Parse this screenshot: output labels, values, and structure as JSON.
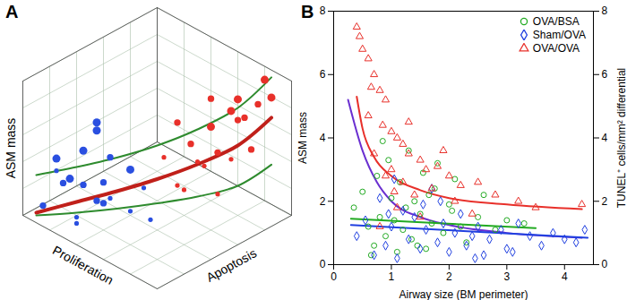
{
  "chart_data": [
    {
      "type": "scatter3d",
      "title": "A",
      "x_label": "Proliferation",
      "y_label": "Apoptosis",
      "z_label": "ASM mass",
      "xlim": [
        0,
        1
      ],
      "ylim": [
        0,
        1
      ],
      "zlim": [
        0,
        1
      ],
      "tick_labels": false,
      "grid": true,
      "series": [
        {
          "type": "scatter",
          "color": "#e8302a",
          "marker": "circle",
          "x": [
            0.1,
            0.2,
            0.3,
            0.15,
            0.4,
            0.25,
            0.05,
            0.35,
            0.5,
            0.2,
            0.3,
            0.45,
            0.1,
            0.6,
            0.25,
            0.4,
            0.15,
            0.55,
            0.35,
            0.2
          ],
          "y": [
            0.95,
            0.85,
            0.9,
            0.7,
            0.8,
            0.6,
            0.75,
            0.65,
            0.9,
            1.0,
            0.5,
            0.7,
            0.55,
            0.75,
            0.8,
            0.55,
            0.9,
            0.6,
            0.95,
            0.65
          ],
          "z": [
            0.85,
            0.7,
            0.6,
            0.5,
            0.55,
            0.45,
            0.6,
            0.4,
            0.65,
            0.9,
            0.3,
            0.45,
            0.35,
            0.5,
            0.75,
            0.25,
            0.8,
            0.35,
            0.7,
            0.55
          ],
          "sizes": [
            3,
            2,
            2,
            1,
            3,
            1,
            2,
            1,
            2,
            3,
            1,
            2,
            1,
            2,
            3,
            1,
            2,
            1,
            3,
            2
          ]
        },
        {
          "type": "scatter",
          "color": "#2a4fe0",
          "marker": "circle",
          "x": [
            0.9,
            0.8,
            0.7,
            0.85,
            0.6,
            0.75,
            0.95,
            0.65,
            0.5,
            0.8,
            0.7,
            0.55,
            0.9,
            0.4,
            0.75,
            0.6,
            0.85,
            0.45,
            0.65,
            0.8
          ],
          "y": [
            0.05,
            0.15,
            0.1,
            0.3,
            0.2,
            0.4,
            0.2,
            0.05,
            0.3,
            0.25,
            0.35,
            0.1,
            0.45,
            0.2,
            0.05,
            0.5,
            0.1,
            0.4,
            0.25,
            0.35
          ],
          "z": [
            0.1,
            0.3,
            0.05,
            0.4,
            0.2,
            0.35,
            0.25,
            0.15,
            0.45,
            0.2,
            0.1,
            0.3,
            0.5,
            0.25,
            0.35,
            0.15,
            0.45,
            0.05,
            0.3,
            0.55
          ],
          "sizes": [
            2,
            3,
            1,
            3,
            2,
            2,
            1,
            1,
            3,
            2,
            1,
            2,
            3,
            1,
            2,
            1,
            3,
            1,
            2,
            3
          ]
        },
        {
          "type": "line",
          "color": "#2e8b2e",
          "x": [
            0.95,
            0.8,
            0.65,
            0.5,
            0.35,
            0.2,
            0.1
          ],
          "y": [
            0.05,
            0.2,
            0.35,
            0.5,
            0.65,
            0.8,
            0.95
          ],
          "z": [
            0.3,
            0.36,
            0.43,
            0.52,
            0.64,
            0.8,
            1.0
          ]
        },
        {
          "type": "line",
          "color": "#2e8b2e",
          "x": [
            0.95,
            0.8,
            0.65,
            0.5,
            0.35,
            0.2,
            0.1
          ],
          "y": [
            0.05,
            0.2,
            0.35,
            0.5,
            0.65,
            0.8,
            0.95
          ],
          "z": [
            0.0,
            0.02,
            0.05,
            0.09,
            0.14,
            0.22,
            0.35
          ]
        },
        {
          "type": "line",
          "color": "#c0201a",
          "x": [
            0.95,
            0.8,
            0.65,
            0.5,
            0.35,
            0.2,
            0.1
          ],
          "y": [
            0.05,
            0.2,
            0.35,
            0.5,
            0.65,
            0.8,
            0.95
          ],
          "z": [
            0.02,
            0.1,
            0.18,
            0.27,
            0.38,
            0.52,
            0.7
          ]
        }
      ]
    },
    {
      "type": "scatter",
      "title": "B",
      "x_label": "Airway size (BM perimeter)",
      "y_label": "ASM mass",
      "y2_label": "TUNEL⁺ cells/mm² differential",
      "xlim": [
        0,
        4.5
      ],
      "xticks": [
        0,
        1,
        2,
        3,
        4
      ],
      "ylim": [
        0,
        8
      ],
      "yticks": [
        0,
        2,
        4,
        6,
        8
      ],
      "y2lim": [
        0,
        8
      ],
      "y2ticks": [
        0,
        2,
        4,
        6,
        8
      ],
      "legend": "top-right",
      "series": [
        {
          "name": "OVA/BSA",
          "type": "scatter",
          "color": "#22aa22",
          "marker": "circle",
          "x": [
            0.35,
            0.5,
            0.6,
            0.7,
            0.75,
            0.8,
            0.9,
            0.95,
            1.0,
            1.05,
            1.1,
            1.15,
            1.2,
            1.3,
            1.35,
            1.4,
            1.5,
            1.55,
            1.6,
            1.7,
            1.75,
            1.8,
            1.9,
            2.0,
            2.1,
            2.2,
            2.3,
            2.5,
            2.6,
            2.8,
            3.0,
            3.3,
            0.65,
            1.25,
            1.45,
            0.85,
            1.65,
            2.05
          ],
          "values": [
            1.8,
            2.3,
            1.2,
            0.6,
            2.8,
            1.5,
            0.9,
            3.3,
            2.1,
            1.4,
            0.4,
            2.6,
            1.1,
            3.6,
            0.8,
            2.0,
            1.6,
            2.9,
            0.5,
            1.3,
            2.4,
            3.2,
            1.0,
            1.9,
            2.7,
            1.2,
            0.7,
            1.5,
            2.2,
            1.1,
            1.4,
            1.3,
            0.3,
            1.8,
            0.6,
            3.9,
            2.2,
            1.7
          ]
        },
        {
          "name": "Sham/OVA",
          "type": "scatter",
          "color": "#2040e0",
          "marker": "diamond",
          "x": [
            0.4,
            0.55,
            0.7,
            0.8,
            0.9,
            1.0,
            1.1,
            1.2,
            1.3,
            1.4,
            1.5,
            1.6,
            1.7,
            1.8,
            1.9,
            2.0,
            2.1,
            2.2,
            2.3,
            2.4,
            2.5,
            2.6,
            2.7,
            2.9,
            3.0,
            3.2,
            3.4,
            3.6,
            3.8,
            4.0,
            4.2,
            4.35,
            1.05,
            1.55,
            0.95,
            1.85,
            2.45,
            3.1
          ],
          "values": [
            0.9,
            1.4,
            0.3,
            2.1,
            0.6,
            1.2,
            0.2,
            1.7,
            0.8,
            1.5,
            0.5,
            1.1,
            2.4,
            0.7,
            1.3,
            0.4,
            1.0,
            1.6,
            0.6,
            0.9,
            1.2,
            0.3,
            0.8,
            1.1,
            0.5,
            1.3,
            0.9,
            0.6,
            1.0,
            0.8,
            0.7,
            1.1,
            2.7,
            1.9,
            1.6,
            2.0,
            0.2,
            0.4
          ]
        },
        {
          "name": "OVA/OVA",
          "type": "scatter",
          "color": "#e8302a",
          "marker": "triangle",
          "x": [
            0.4,
            0.45,
            0.5,
            0.6,
            0.6,
            0.65,
            0.7,
            0.7,
            0.8,
            0.8,
            0.85,
            0.9,
            0.9,
            1.0,
            1.0,
            1.1,
            1.1,
            1.2,
            1.2,
            1.3,
            1.3,
            1.4,
            1.5,
            1.5,
            1.6,
            1.7,
            1.8,
            1.9,
            2.0,
            2.1,
            2.2,
            2.4,
            2.5,
            2.8,
            3.2,
            3.5,
            4.3,
            1.05
          ],
          "values": [
            7.5,
            7.2,
            6.8,
            6.5,
            4.7,
            5.6,
            6.0,
            3.5,
            5.5,
            1.2,
            4.4,
            5.2,
            2.8,
            4.2,
            3.0,
            4.0,
            1.8,
            3.8,
            2.6,
            3.5,
            4.5,
            2.2,
            3.3,
            1.5,
            3.0,
            2.4,
            3.1,
            3.6,
            2.8,
            2.0,
            2.5,
            1.6,
            2.6,
            2.2,
            2.0,
            1.8,
            1.9,
            2.3
          ]
        },
        {
          "type": "line",
          "color": "#e8302a",
          "x": [
            0.4,
            0.5,
            0.7,
            1.0,
            1.5,
            2.0,
            3.0,
            4.3
          ],
          "values": [
            5.3,
            4.3,
            3.4,
            2.8,
            2.35,
            2.1,
            1.9,
            1.75
          ]
        },
        {
          "type": "line",
          "color": "#6a2fd0",
          "axis": "y2",
          "x": [
            0.25,
            0.5,
            0.75,
            1.0,
            1.5,
            2.0,
            3.0,
            4.3
          ],
          "values": [
            5.2,
            3.6,
            2.6,
            2.0,
            1.5,
            1.25,
            1.0,
            0.85
          ]
        },
        {
          "type": "line",
          "color": "#2040e0",
          "x": [
            0.3,
            4.4
          ],
          "values": [
            1.25,
            0.85
          ]
        },
        {
          "type": "line",
          "color": "#22aa22",
          "x": [
            0.3,
            3.5
          ],
          "values": [
            1.45,
            1.15
          ]
        }
      ]
    }
  ]
}
